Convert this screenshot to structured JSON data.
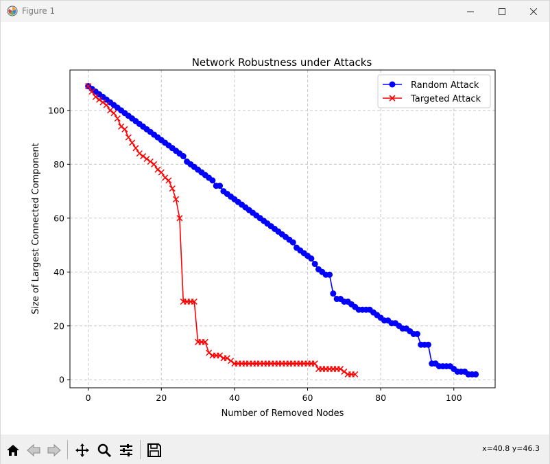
{
  "window": {
    "title": "Figure 1"
  },
  "chart_data": {
    "type": "line",
    "title": "Network Robustness under Attacks",
    "xlabel": "Number of Removed Nodes",
    "ylabel": "Size of Largest Connected Component",
    "xlim": [
      -5,
      111.3
    ],
    "ylim": [
      -3,
      115
    ],
    "xticks": [
      0,
      20,
      40,
      60,
      80,
      100
    ],
    "yticks": [
      0,
      20,
      40,
      60,
      80,
      100
    ],
    "grid": true,
    "legend_position": "top-right",
    "series": [
      {
        "name": "Random Attack",
        "color": "#0000ff",
        "marker": "circle",
        "x": [
          0,
          1,
          2,
          3,
          4,
          5,
          6,
          7,
          8,
          9,
          10,
          11,
          12,
          13,
          14,
          15,
          16,
          17,
          18,
          19,
          20,
          21,
          22,
          23,
          24,
          25,
          26,
          27,
          28,
          29,
          30,
          31,
          32,
          33,
          34,
          35,
          36,
          37,
          38,
          39,
          40,
          41,
          42,
          43,
          44,
          45,
          46,
          47,
          48,
          49,
          50,
          51,
          52,
          53,
          54,
          55,
          56,
          57,
          58,
          59,
          60,
          61,
          62,
          63,
          64,
          65,
          66,
          67,
          68,
          69,
          70,
          71,
          72,
          73,
          74,
          75,
          76,
          77,
          78,
          79,
          80,
          81,
          82,
          83,
          84,
          85,
          86,
          87,
          88,
          89,
          90,
          91,
          92,
          93,
          94,
          95,
          96,
          97,
          98,
          99,
          100,
          101,
          102,
          103,
          104,
          105,
          106
        ],
        "y": [
          109,
          108,
          107,
          106,
          105,
          104,
          103,
          102,
          101,
          100,
          99,
          98,
          97,
          96,
          95,
          94,
          93,
          92,
          91,
          90,
          89,
          88,
          87,
          86,
          85,
          84,
          83,
          81,
          80,
          79,
          78,
          77,
          76,
          75,
          74,
          72,
          72,
          70,
          69,
          68,
          67,
          66,
          65,
          64,
          63,
          62,
          61,
          60,
          59,
          58,
          57,
          56,
          55,
          54,
          53,
          52,
          51,
          49,
          48,
          47,
          46,
          45,
          43,
          41,
          40,
          39,
          39,
          32,
          30,
          30,
          29,
          29,
          28,
          27,
          26,
          26,
          26,
          26,
          25,
          24,
          23,
          22,
          22,
          21,
          21,
          20,
          19,
          19,
          18,
          17,
          17,
          13,
          13,
          13,
          6,
          6,
          5,
          5,
          5,
          5,
          4,
          3,
          3,
          3,
          2,
          2,
          2
        ]
      },
      {
        "name": "Targeted Attack",
        "color": "#ff0000",
        "marker": "x",
        "x": [
          0,
          1,
          2,
          3,
          4,
          5,
          6,
          7,
          8,
          9,
          10,
          11,
          12,
          13,
          14,
          15,
          16,
          17,
          18,
          19,
          20,
          21,
          22,
          23,
          24,
          25,
          26,
          27,
          28,
          29,
          30,
          31,
          32,
          33,
          34,
          35,
          36,
          37,
          38,
          39,
          40,
          41,
          42,
          43,
          44,
          45,
          46,
          47,
          48,
          49,
          50,
          51,
          52,
          53,
          54,
          55,
          56,
          57,
          58,
          59,
          60,
          61,
          62,
          63,
          64,
          65,
          66,
          67,
          68,
          69,
          70,
          71,
          72,
          73
        ],
        "y": [
          109,
          107,
          105,
          104,
          103,
          102,
          100,
          99,
          97,
          94,
          93,
          90,
          88,
          86,
          84,
          83,
          82,
          81,
          80,
          78,
          77,
          75,
          74,
          71,
          67,
          60,
          29,
          29,
          29,
          29,
          14,
          14,
          14,
          10,
          9,
          9,
          9,
          8,
          8,
          7,
          6,
          6,
          6,
          6,
          6,
          6,
          6,
          6,
          6,
          6,
          6,
          6,
          6,
          6,
          6,
          6,
          6,
          6,
          6,
          6,
          6,
          6,
          6,
          4,
          4,
          4,
          4,
          4,
          4,
          4,
          3,
          2,
          2,
          2
        ]
      }
    ]
  },
  "toolbar": {
    "buttons": [
      "home-icon",
      "back-icon",
      "forward-icon",
      "pan-icon",
      "zoom-icon",
      "configure-subplots-icon",
      "save-icon"
    ],
    "coords_text": "x=40.8 y=46.3"
  }
}
